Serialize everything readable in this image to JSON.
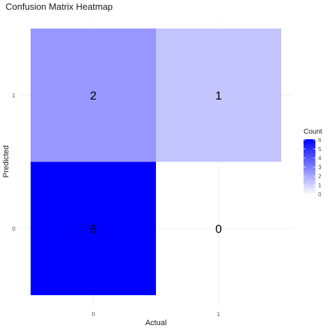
{
  "chart_data": {
    "type": "heatmap",
    "title": "Confusion Matrix Heatmap",
    "xlabel": "Actual",
    "ylabel": "Predicted",
    "x_categories": [
      "0",
      "1"
    ],
    "y_categories": [
      "0",
      "1"
    ],
    "cells": [
      {
        "x": "0",
        "y": "0",
        "value": 6,
        "label": "6"
      },
      {
        "x": "1",
        "y": "0",
        "value": 0,
        "label": "0"
      },
      {
        "x": "0",
        "y": "1",
        "value": 2,
        "label": "2"
      },
      {
        "x": "1",
        "y": "1",
        "value": 1,
        "label": "1"
      }
    ],
    "legend": {
      "title": "Count",
      "ticks": [
        "0",
        "1",
        "2",
        "3",
        "4",
        "5",
        "6"
      ],
      "low_color": "#ffffff",
      "high_color": "#0000ff",
      "range": [
        0,
        6
      ],
      "position": "right"
    },
    "grid": true
  }
}
